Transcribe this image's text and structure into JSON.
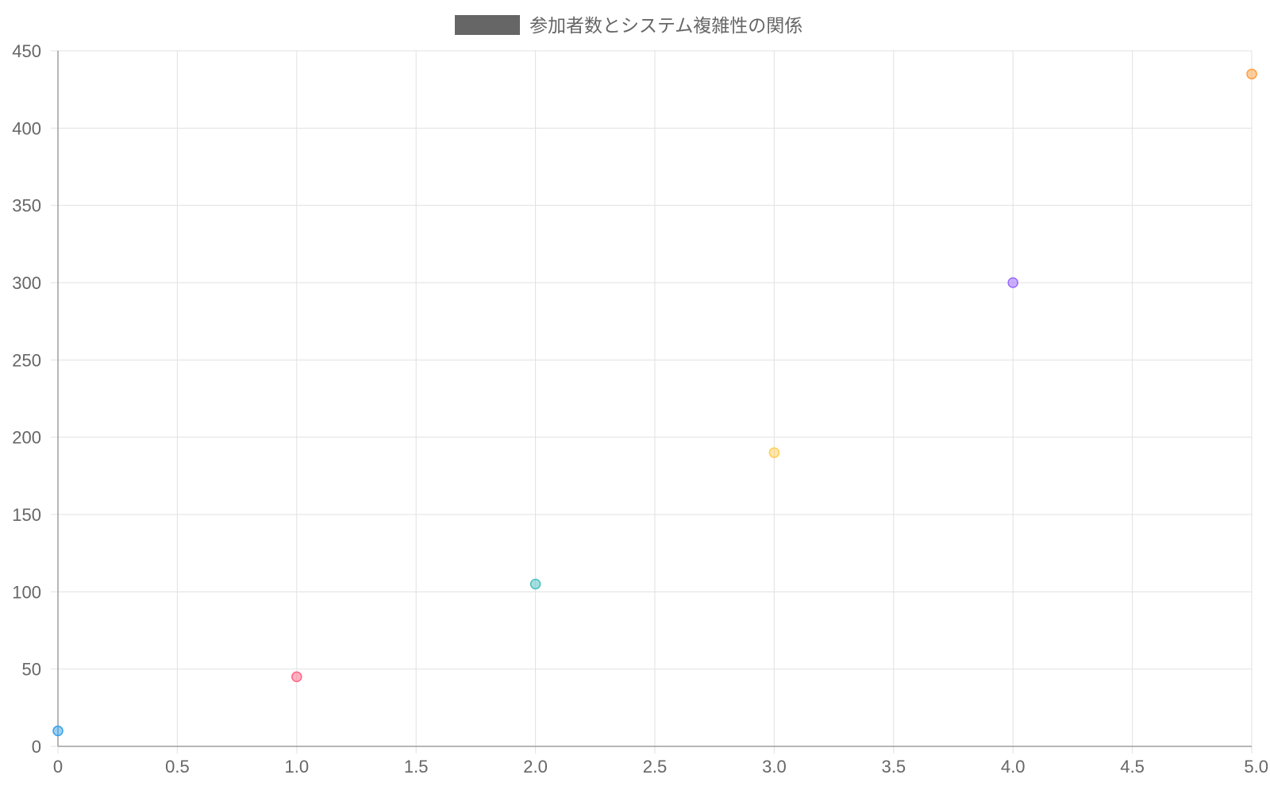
{
  "chart_data": {
    "type": "scatter",
    "title": "",
    "xlabel": "",
    "ylabel": "",
    "xlim": [
      0,
      5
    ],
    "ylim": [
      0,
      450
    ],
    "x_ticks": [
      "0",
      "0.5",
      "1.0",
      "1.5",
      "2.0",
      "2.5",
      "3.0",
      "3.5",
      "4.0",
      "4.5",
      "5.0"
    ],
    "y_ticks": [
      "0",
      "50",
      "100",
      "150",
      "200",
      "250",
      "300",
      "350",
      "400",
      "450"
    ],
    "grid": true,
    "legend": {
      "position": "top-center",
      "entries": [
        {
          "label": "参加者数とシステム複雑性の関係",
          "color": "#666666"
        }
      ]
    },
    "series": [
      {
        "name": "参加者数とシステム複雑性の関係",
        "points": [
          {
            "x": 0,
            "y": 10,
            "color": "#36a2eb"
          },
          {
            "x": 1,
            "y": 45,
            "color": "#ff6384"
          },
          {
            "x": 2,
            "y": 105,
            "color": "#4bc0c0"
          },
          {
            "x": 3,
            "y": 190,
            "color": "#ffcd56"
          },
          {
            "x": 4,
            "y": 300,
            "color": "#9966ff"
          },
          {
            "x": 5,
            "y": 435,
            "color": "#ff9f40"
          }
        ]
      }
    ],
    "colors": {
      "grid": "#e1e1e1",
      "axis": "#9e9e9e",
      "tick_text": "#666666",
      "legend_box": "#666666"
    }
  }
}
